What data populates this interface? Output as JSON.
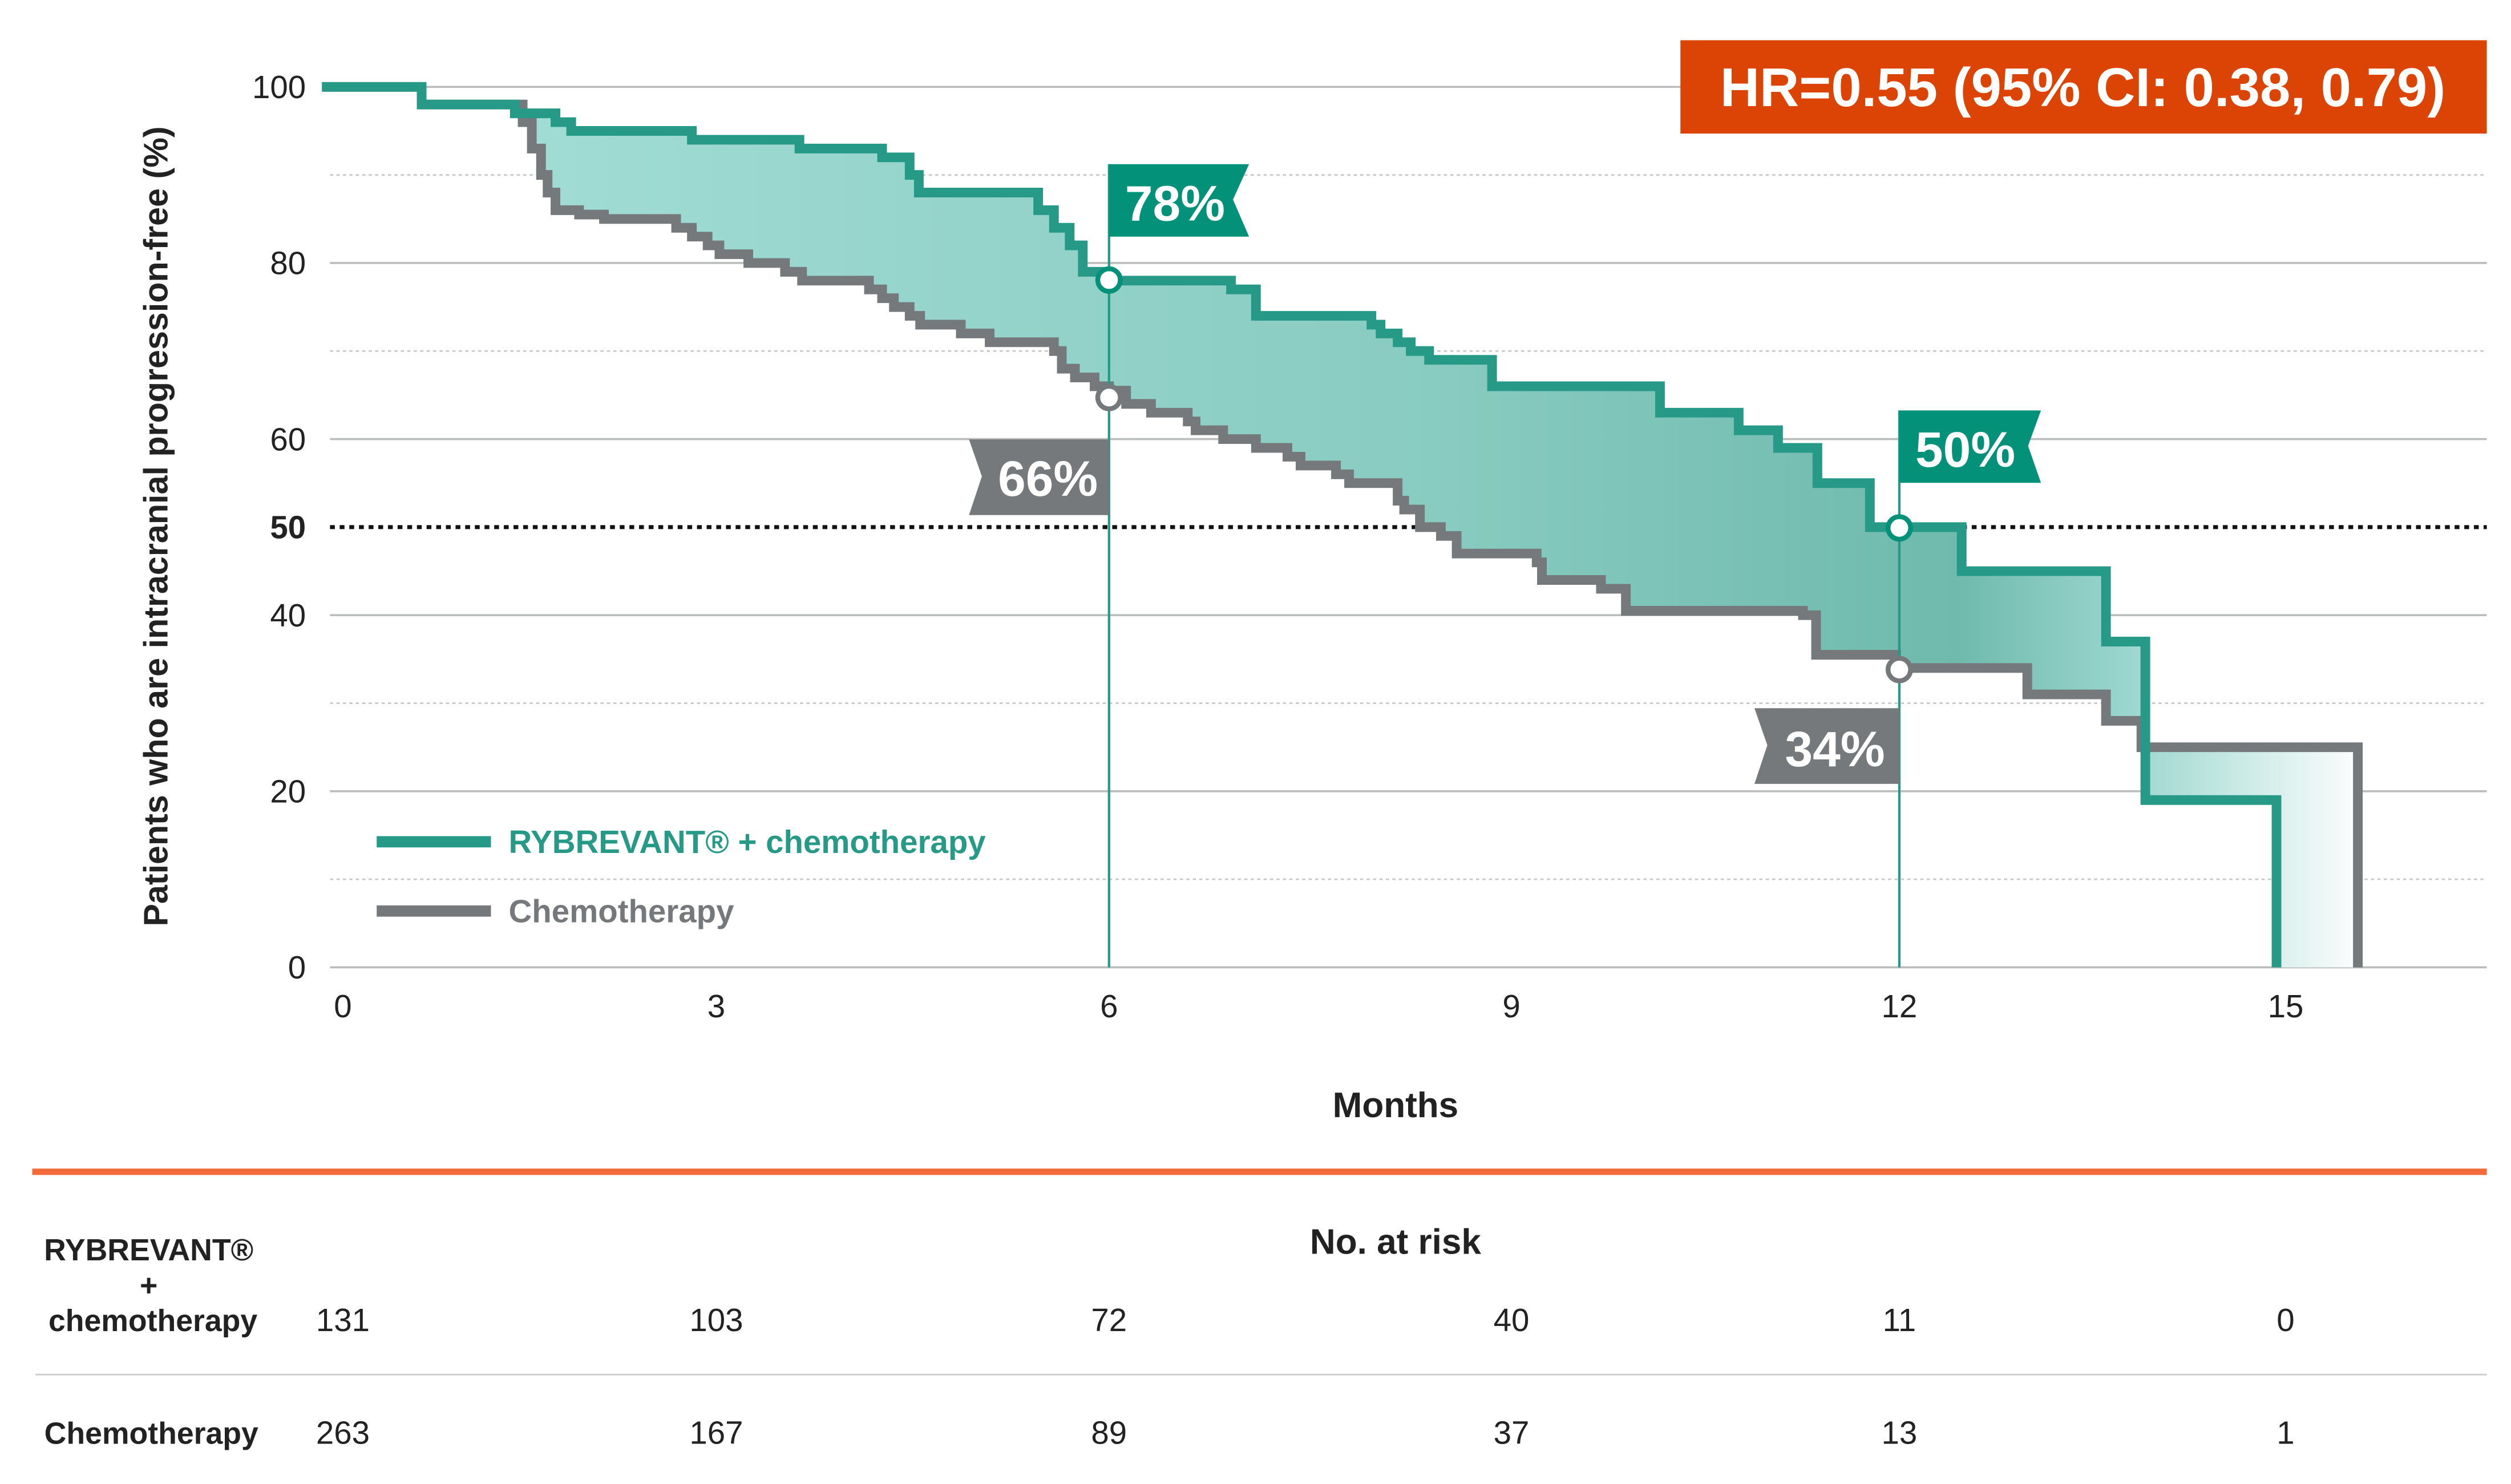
{
  "hr_box": {
    "text": "HR=0.55 (95% CI: 0.38, 0.79)",
    "color": "#dc4405"
  },
  "legend": [
    {
      "label": "RYBREVANT® + chemotherapy",
      "color": "#269a87"
    },
    {
      "label": "Chemotherapy",
      "color": "#76797b"
    }
  ],
  "annotations": [
    {
      "label": "78%",
      "series": "RYBREVANT® + chemotherapy",
      "month": 6,
      "value": 78
    },
    {
      "label": "66%",
      "series": "Chemotherapy",
      "month": 6,
      "value": 66
    },
    {
      "label": "50%",
      "series": "RYBREVANT® + chemotherapy",
      "month": 12,
      "value": 50
    },
    {
      "label": "34%",
      "series": "Chemotherapy",
      "month": 12,
      "value": 34
    }
  ],
  "chart_data": {
    "type": "line",
    "subtype": "kaplan-meier step",
    "xlabel": "Months",
    "ylabel": "Patients who are intracranial progression-free (%)",
    "xlim": [
      0,
      16.5
    ],
    "ylim": [
      0,
      100
    ],
    "x_ticks": [
      "0",
      "3",
      "6",
      "9",
      "12",
      "15"
    ],
    "y_ticks": [
      "0",
      "20",
      "40",
      "50",
      "60",
      "80",
      "100"
    ],
    "reference_line": 50,
    "grid": true,
    "legend_position": "bottom-left",
    "series": [
      {
        "name": "RYBREVANT® + chemotherapy",
        "color": "#269a87",
        "points": [
          [
            0,
            100
          ],
          [
            0.76,
            98
          ],
          [
            1.47,
            97
          ],
          [
            1.78,
            96
          ],
          [
            1.9,
            95
          ],
          [
            2.82,
            94
          ],
          [
            3.64,
            93
          ],
          [
            4.27,
            92
          ],
          [
            4.48,
            90
          ],
          [
            4.55,
            88
          ],
          [
            5.46,
            86
          ],
          [
            5.58,
            84
          ],
          [
            5.7,
            82
          ],
          [
            5.8,
            79
          ],
          [
            6.0,
            78
          ],
          [
            6.93,
            77
          ],
          [
            7.12,
            74
          ],
          [
            8.0,
            73
          ],
          [
            8.07,
            72
          ],
          [
            8.2,
            71
          ],
          [
            8.3,
            70
          ],
          [
            8.44,
            69
          ],
          [
            8.92,
            66
          ],
          [
            10.2,
            63
          ],
          [
            10.8,
            61
          ],
          [
            11.1,
            59
          ],
          [
            11.4,
            55
          ],
          [
            11.8,
            50
          ],
          [
            12.5,
            45
          ],
          [
            13.6,
            37
          ],
          [
            13.9,
            19
          ],
          [
            14.9,
            0
          ]
        ]
      },
      {
        "name": "Chemotherapy",
        "color": "#76797b",
        "points": [
          [
            0,
            100
          ],
          [
            0.76,
            98
          ],
          [
            1.53,
            96
          ],
          [
            1.6,
            93
          ],
          [
            1.67,
            90
          ],
          [
            1.72,
            88
          ],
          [
            1.78,
            86
          ],
          [
            1.96,
            85.5
          ],
          [
            2.15,
            85
          ],
          [
            2.7,
            84
          ],
          [
            2.82,
            83
          ],
          [
            2.94,
            82
          ],
          [
            3.03,
            81
          ],
          [
            3.25,
            80
          ],
          [
            3.53,
            79
          ],
          [
            3.66,
            78
          ],
          [
            4.17,
            77
          ],
          [
            4.27,
            76
          ],
          [
            4.36,
            75
          ],
          [
            4.48,
            74
          ],
          [
            4.56,
            73
          ],
          [
            4.87,
            72
          ],
          [
            5.09,
            71
          ],
          [
            5.58,
            70
          ],
          [
            5.64,
            68
          ],
          [
            5.74,
            67
          ],
          [
            5.89,
            66
          ],
          [
            6.0,
            65.5
          ],
          [
            6.13,
            64
          ],
          [
            6.32,
            63
          ],
          [
            6.6,
            62
          ],
          [
            6.66,
            61
          ],
          [
            6.87,
            60
          ],
          [
            7.12,
            59
          ],
          [
            7.36,
            58
          ],
          [
            7.46,
            57
          ],
          [
            7.73,
            56
          ],
          [
            7.83,
            55
          ],
          [
            8.2,
            53
          ],
          [
            8.25,
            52
          ],
          [
            8.37,
            50
          ],
          [
            8.53,
            49
          ],
          [
            8.65,
            47
          ],
          [
            9.26,
            46
          ],
          [
            9.3,
            44
          ],
          [
            9.75,
            43
          ],
          [
            9.94,
            40.5
          ],
          [
            11.29,
            40
          ],
          [
            11.39,
            35.5
          ],
          [
            12.0,
            34
          ],
          [
            13.0,
            31
          ],
          [
            13.6,
            28
          ],
          [
            13.87,
            25
          ],
          [
            15.52,
            0
          ]
        ]
      }
    ]
  },
  "risk_table": {
    "title": "No. at risk",
    "rows": [
      {
        "label_lines": [
          "RYBREVANT®",
          "+",
          "chemotherapy"
        ],
        "values": [
          "131",
          "103",
          "72",
          "40",
          "11",
          "0"
        ]
      },
      {
        "label_lines": [
          "Chemotherapy"
        ],
        "values": [
          "263",
          "167",
          "89",
          "37",
          "13",
          "1"
        ]
      }
    ]
  }
}
